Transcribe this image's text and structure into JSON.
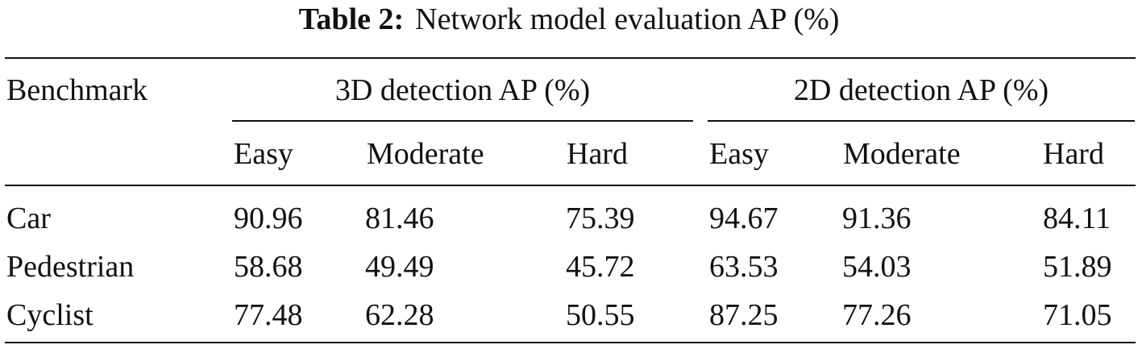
{
  "caption": {
    "label": "Table 2:",
    "text": "Network model evaluation AP (%)"
  },
  "header": {
    "row_label": "Benchmark",
    "groups": [
      {
        "title": "3D detection AP (%)"
      },
      {
        "title": "2D detection AP (%)"
      }
    ],
    "subheaders": [
      "Easy",
      "Moderate",
      "Hard",
      "Easy",
      "Moderate",
      "Hard"
    ]
  },
  "rows": [
    {
      "name": "Car",
      "values": [
        "90.96",
        "81.46",
        "75.39",
        "94.67",
        "91.36",
        "84.11"
      ]
    },
    {
      "name": "Pedestrian",
      "values": [
        "58.68",
        "49.49",
        "45.72",
        "63.53",
        "54.03",
        "51.89"
      ]
    },
    {
      "name": "Cyclist",
      "values": [
        "77.48",
        "62.28",
        "50.55",
        "87.25",
        "77.26",
        "71.05"
      ]
    }
  ]
}
